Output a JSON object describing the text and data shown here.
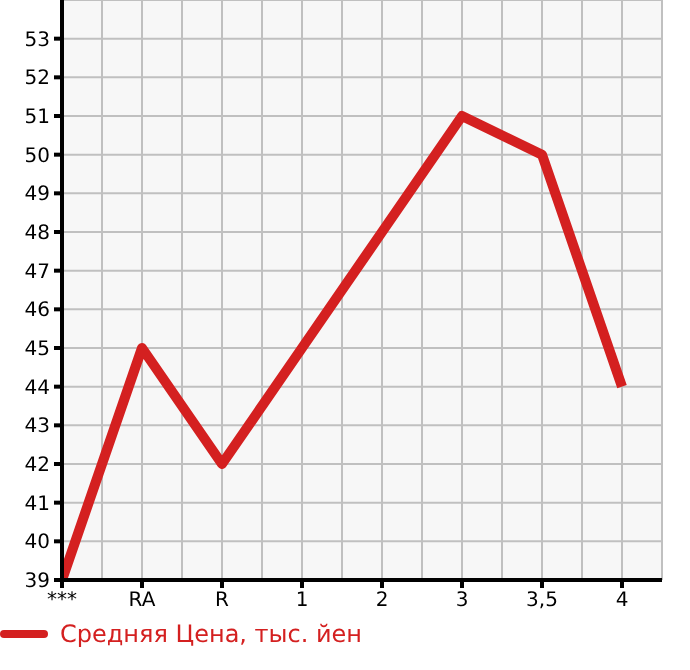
{
  "chart_data": {
    "type": "line",
    "categories": [
      "***",
      "RA",
      "R",
      "1",
      "2",
      "3",
      "3,5",
      "4"
    ],
    "series": [
      {
        "name": "Средняя Цена, тыс. йен",
        "color": "#d42020",
        "values": [
          39,
          45,
          42,
          45,
          48,
          51,
          50,
          44
        ]
      }
    ],
    "ylim": [
      39,
      54
    ],
    "yticks": [
      39,
      40,
      41,
      42,
      43,
      44,
      45,
      46,
      47,
      48,
      49,
      50,
      51,
      52,
      53
    ],
    "grid": true,
    "legend": "bottom left",
    "marker": "none",
    "line_style": "solid"
  }
}
